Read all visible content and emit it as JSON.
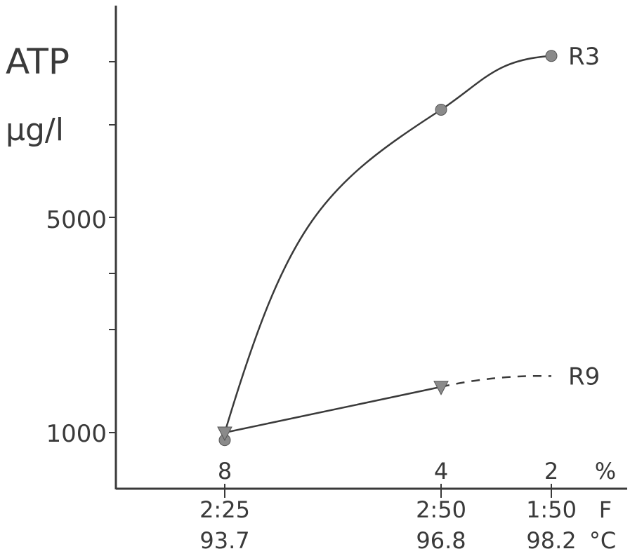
{
  "chart_data": {
    "type": "line",
    "ylabel": "ATP",
    "yunit": "µg/l",
    "ytick_labels": [
      "5000",
      "1000"
    ],
    "x_percent_labels": [
      "8",
      "4",
      "2"
    ],
    "x_percent_unit": "%",
    "x_time_labels": [
      "2:25",
      "2:50",
      "1:50"
    ],
    "x_time_unit": "F",
    "x_temp_labels": [
      "93.7",
      "96.8",
      "98.2"
    ],
    "x_temp_unit": "°C",
    "series": [
      {
        "name": "R3",
        "marker": "circle",
        "points": [
          {
            "x": 8,
            "y": 860
          },
          {
            "x": 4,
            "y": 7000
          },
          {
            "x": 2,
            "y": 8000
          }
        ]
      },
      {
        "name": "R9",
        "marker": "triangle-down",
        "points": [
          {
            "x": 8,
            "y": 1000
          },
          {
            "x": 4,
            "y": 1850
          }
        ],
        "extension": {
          "x": 2,
          "y": 2050,
          "style": "dashed"
        }
      }
    ]
  }
}
